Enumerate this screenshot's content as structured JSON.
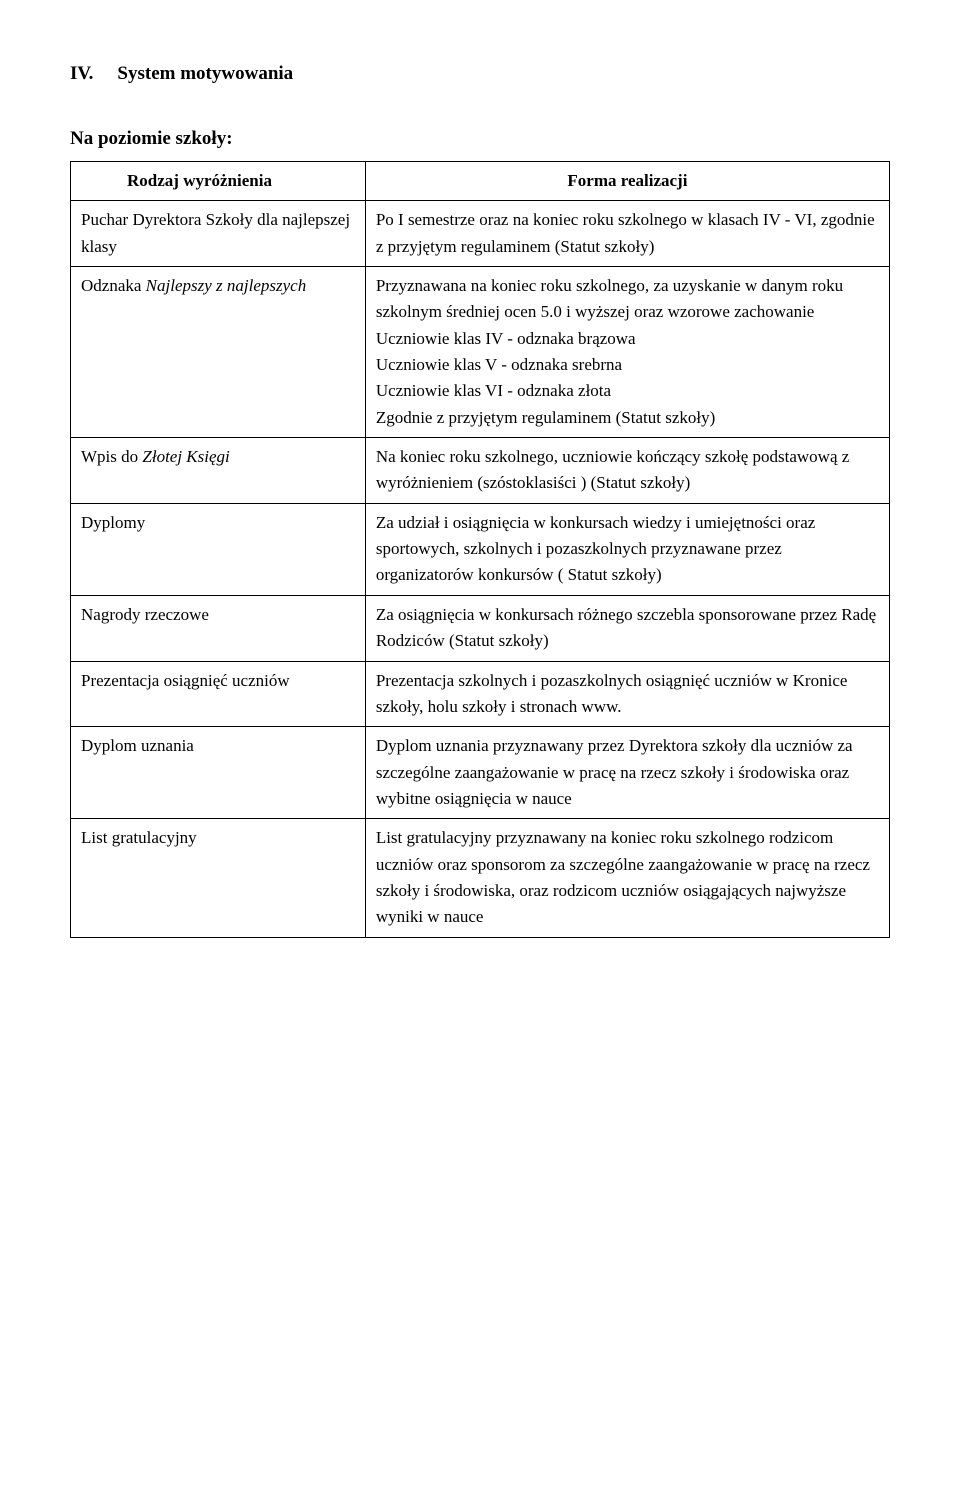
{
  "heading": {
    "number": "IV.",
    "title": "System motywowania"
  },
  "subheading": "Na poziomie szkoły:",
  "table": {
    "headers": {
      "left": "Rodzaj wyróżnienia",
      "right": "Forma realizacji"
    },
    "rows": [
      {
        "left": "Puchar Dyrektora Szkoły dla najlepszej klasy",
        "right": "Po I semestrze oraz na koniec roku szkolnego w klasach IV - VI, zgodnie z przyjętym regulaminem (Statut szkoły)"
      },
      {
        "left_prefix": "Odznaka ",
        "left_italic": "Najlepszy z najlepszych",
        "right": "Przyznawana na koniec roku szkolnego, za uzyskanie w danym roku szkolnym średniej ocen 5.0 i wyższej oraz wzorowe zachowanie\nUczniowie klas IV - odznaka brązowa\nUczniowie klas V - odznaka srebrna\nUczniowie klas VI - odznaka złota\nZgodnie z przyjętym regulaminem (Statut szkoły)"
      },
      {
        "left_prefix": "Wpis do ",
        "left_italic": "Złotej Księgi",
        "right": "Na koniec roku szkolnego, uczniowie kończący szkołę podstawową z wyróżnieniem (szóstoklasiści ) (Statut szkoły)"
      },
      {
        "left": "Dyplomy",
        "right": "Za udział i osiągnięcia w konkursach wiedzy i umiejętności oraz sportowych, szkolnych  i pozaszkolnych przyznawane przez organizatorów konkursów ( Statut szkoły)"
      },
      {
        "left": "Nagrody rzeczowe",
        "right": "Za osiągnięcia w konkursach różnego szczebla sponsorowane przez Radę Rodziców (Statut szkoły)"
      },
      {
        "left": "Prezentacja osiągnięć uczniów",
        "right": "Prezentacja szkolnych i pozaszkolnych osiągnięć uczniów w Kronice szkoły, holu szkoły i stronach www."
      },
      {
        "left": "Dyplom uznania",
        "right": "Dyplom uznania przyznawany przez Dyrektora szkoły dla uczniów za szczególne zaangażowanie w pracę na rzecz szkoły i środowiska oraz wybitne osiągnięcia w nauce"
      },
      {
        "left": "List gratulacyjny",
        "right": "List gratulacyjny przyznawany na koniec roku szkolnego rodzicom uczniów oraz sponsorom za szczególne zaangażowanie w pracę na rzecz szkoły i środowiska, oraz rodzicom uczniów osiągających najwyższe wyniki w nauce"
      }
    ]
  }
}
